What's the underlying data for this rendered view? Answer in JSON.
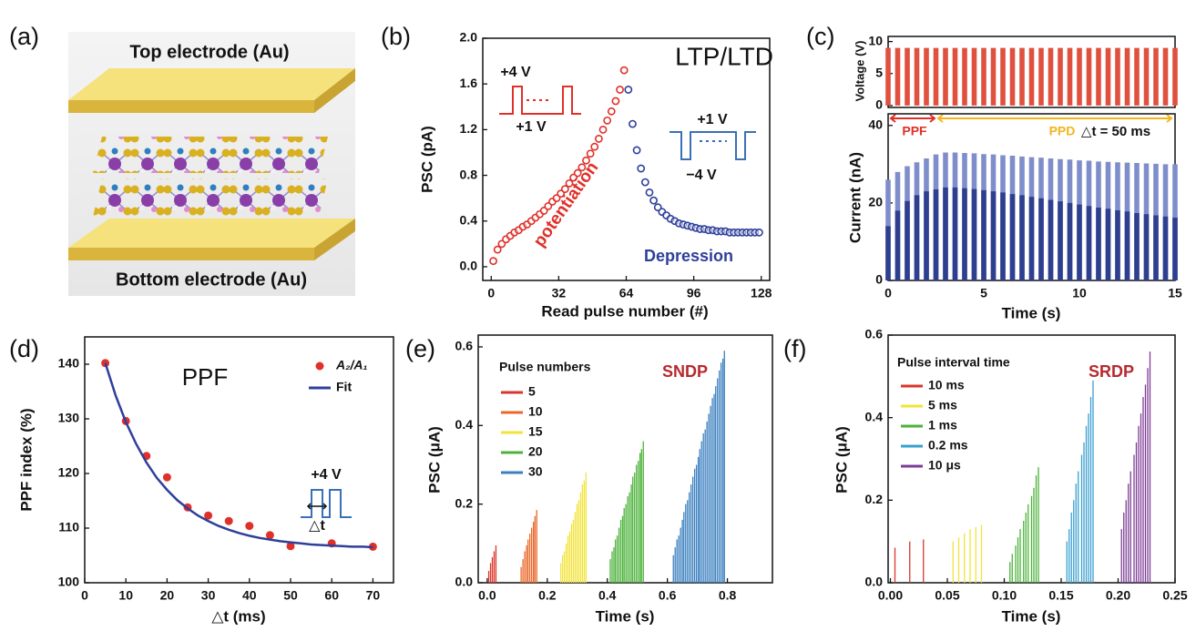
{
  "illustration": {
    "label": "(a)",
    "top_label": "Top electrode (Au)",
    "bottom_label": "Bottom electrode (Au)"
  },
  "chart_data": [
    {
      "type": "scatter",
      "label": "(b)",
      "x_label": "Read pulse number (#)",
      "y_label": "PSC (pA)",
      "xlim": [
        -4,
        132
      ],
      "xticks": [
        0,
        32,
        64,
        96,
        128
      ],
      "ylim": [
        -0.12,
        2.0
      ],
      "yticks": [
        {
          "value": 0,
          "label": "0.0"
        },
        0.4,
        0.8,
        1.2,
        1.6,
        {
          "value": 2,
          "label": "2.0"
        }
      ],
      "annotations": [
        "LTP/LTD",
        "+4 V",
        "+1 V",
        "+1 V",
        "−4 V"
      ],
      "series": [
        {
          "name": "potentiation",
          "color": "#e0302a",
          "x": [
            1,
            3,
            5,
            7,
            9,
            11,
            13,
            15,
            17,
            19,
            21,
            23,
            25,
            27,
            29,
            31,
            33,
            35,
            37,
            39,
            41,
            43,
            45,
            47,
            49,
            51,
            53,
            55,
            57,
            59,
            61,
            63
          ],
          "values": [
            0.05,
            0.15,
            0.2,
            0.24,
            0.27,
            0.3,
            0.32,
            0.35,
            0.37,
            0.4,
            0.43,
            0.46,
            0.49,
            0.53,
            0.57,
            0.6,
            0.64,
            0.68,
            0.73,
            0.78,
            0.82,
            0.87,
            0.93,
            0.99,
            1.05,
            1.12,
            1.2,
            1.28,
            1.36,
            1.45,
            1.55,
            1.72
          ]
        },
        {
          "name": "Depression",
          "color": "#2e3f9a",
          "x": [
            65,
            67,
            69,
            71,
            73,
            75,
            77,
            79,
            81,
            83,
            85,
            87,
            89,
            91,
            93,
            95,
            97,
            99,
            101,
            103,
            105,
            107,
            109,
            111,
            113,
            115,
            117,
            119,
            121,
            123,
            125,
            127
          ],
          "values": [
            1.55,
            1.25,
            1.02,
            0.86,
            0.74,
            0.65,
            0.58,
            0.52,
            0.48,
            0.45,
            0.42,
            0.4,
            0.38,
            0.37,
            0.36,
            0.35,
            0.34,
            0.33,
            0.33,
            0.32,
            0.32,
            0.31,
            0.31,
            0.31,
            0.3,
            0.3,
            0.3,
            0.3,
            0.3,
            0.3,
            0.3,
            0.3
          ]
        }
      ]
    },
    {
      "type": "spike",
      "label": "(c)",
      "y_label": "Voltage (V)",
      "xlim": [
        0,
        15
      ],
      "ylim": [
        -0.3,
        10.8
      ],
      "yticks": [
        0,
        5,
        10
      ],
      "series": [
        {
          "color": "#e0503e",
          "x": [
            0,
            0.5,
            1,
            1.5,
            2,
            2.5,
            3,
            3.5,
            4,
            4.5,
            5,
            5.5,
            6,
            6.5,
            7,
            7.5,
            8,
            8.5,
            9,
            9.5,
            10,
            10.5,
            11,
            11.5,
            12,
            12.5,
            13,
            13.5,
            14,
            14.5,
            15
          ],
          "values": [
            9,
            9,
            9,
            9,
            9,
            9,
            9,
            9,
            9,
            9,
            9,
            9,
            9,
            9,
            9,
            9,
            9,
            9,
            9,
            9,
            9,
            9,
            9,
            9,
            9,
            9,
            9,
            9,
            9,
            9,
            9
          ]
        }
      ]
    },
    {
      "type": "spike",
      "x_label": "Time (s)",
      "y_label": "Current (nA)",
      "xlim": [
        0,
        15
      ],
      "xticks": [
        0,
        5,
        10,
        15
      ],
      "ylim": [
        0,
        43
      ],
      "yticks": [
        0,
        20,
        40
      ],
      "annotations": [
        "PPF",
        "PPD",
        "△t = 50 ms"
      ],
      "series": [
        {
          "color": "#7f8ecb",
          "x": [
            0,
            0.5,
            1,
            1.5,
            2,
            2.5,
            3,
            3.5,
            4,
            4.5,
            5,
            5.5,
            6,
            6.5,
            7,
            7.5,
            8,
            8.5,
            9,
            9.5,
            10,
            10.5,
            11,
            11.5,
            12,
            12.5,
            13,
            13.5,
            14,
            14.5,
            15
          ],
          "values": [
            26,
            28,
            29.5,
            30.5,
            31.5,
            32.5,
            33,
            33,
            32.9,
            32.8,
            32.6,
            32.5,
            32.3,
            32.2,
            32,
            31.8,
            31.7,
            31.5,
            31.3,
            31.2,
            31,
            30.9,
            30.7,
            30.6,
            30.5,
            30.4,
            30.3,
            30.2,
            30.1,
            30,
            30
          ]
        },
        {
          "color": "#2e3f8f",
          "x": [
            0,
            0.5,
            1,
            1.5,
            2,
            2.5,
            3,
            3.5,
            4,
            4.5,
            5,
            5.5,
            6,
            6.5,
            7,
            7.5,
            8,
            8.5,
            9,
            9.5,
            10,
            10.5,
            11,
            11.5,
            12,
            12.5,
            13,
            13.5,
            14,
            14.5,
            15
          ],
          "values": [
            14,
            18,
            20.5,
            22,
            23,
            23.5,
            24,
            24,
            23.8,
            23.6,
            23.3,
            23,
            22.7,
            22.3,
            22,
            21.6,
            21.2,
            20.8,
            20.4,
            20,
            19.6,
            19.2,
            18.8,
            18.5,
            18.1,
            17.8,
            17.4,
            17.1,
            16.8,
            16.5,
            16.2
          ]
        }
      ]
    },
    {
      "type": "scatter",
      "label": "(d)",
      "x_label": "△t (ms)",
      "y_label": "PPF index (%)",
      "xlim": [
        0,
        75
      ],
      "xticks": [
        0,
        10,
        20,
        30,
        40,
        50,
        60,
        70
      ],
      "ylim": [
        100,
        145
      ],
      "yticks": [
        100,
        110,
        120,
        130,
        140
      ],
      "annotations": [
        "PPF",
        "+4 V",
        "△t"
      ],
      "series": [
        {
          "name": "A₂/A₁",
          "color": "#e0302a",
          "x": [
            5,
            10,
            15,
            20,
            25,
            30,
            35,
            40,
            45,
            50,
            60,
            70
          ],
          "values": [
            140.2,
            129.6,
            123.2,
            119.3,
            113.8,
            112.3,
            111.3,
            110.4,
            108.7,
            106.7,
            107.2,
            106.6
          ]
        },
        {
          "name": "Fit",
          "type": "line",
          "color": "#2e3f9a",
          "x": [
            5,
            7.5,
            10,
            12.5,
            15,
            17.5,
            20,
            22.5,
            25,
            27.5,
            30,
            32.5,
            35,
            37.5,
            40,
            42.5,
            45,
            47.5,
            50,
            52.5,
            55,
            57.5,
            60,
            62.5,
            65,
            67.5,
            70
          ],
          "values": [
            140.2,
            134.3,
            129.4,
            125.4,
            122.0,
            119.2,
            117.0,
            115.1,
            113.6,
            112.3,
            111.3,
            110.4,
            109.7,
            109.1,
            108.6,
            108.2,
            107.9,
            107.6,
            107.4,
            107.2,
            107.0,
            106.9,
            106.8,
            106.7,
            106.6,
            106.6,
            106.5
          ]
        }
      ]
    },
    {
      "type": "spike",
      "label": "(e)",
      "x_label": "Time (s)",
      "y_label": "PSC (μA)",
      "xlim": [
        -0.03,
        0.95
      ],
      "xticks": [
        {
          "value": 0,
          "label": "0.0"
        },
        0.2,
        0.4,
        0.6,
        0.8
      ],
      "ylim": [
        0,
        0.63
      ],
      "yticks": [
        {
          "value": 0,
          "label": "0.0"
        },
        0.2,
        0.4,
        0.6
      ],
      "annotations": [
        "SNDP"
      ],
      "legend_title": "Pulse numbers",
      "series": [
        {
          "name": "5",
          "color": "#d9362b",
          "x": [
            0.005,
            0.011,
            0.017,
            0.023,
            0.029
          ],
          "values": [
            0.03,
            0.05,
            0.065,
            0.08,
            0.095
          ]
        },
        {
          "name": "10",
          "color": "#e8682a",
          "x": [
            0.113,
            0.119,
            0.125,
            0.131,
            0.136,
            0.142,
            0.148,
            0.154,
            0.159,
            0.165
          ],
          "values": [
            0.04,
            0.06,
            0.08,
            0.095,
            0.11,
            0.125,
            0.14,
            0.155,
            0.17,
            0.185
          ]
        },
        {
          "name": "15",
          "color": "#f2e33a",
          "x": [
            0.245,
            0.251,
            0.257,
            0.263,
            0.269,
            0.275,
            0.281,
            0.287,
            0.293,
            0.299,
            0.305,
            0.311,
            0.317,
            0.323,
            0.329
          ],
          "values": [
            0.05,
            0.07,
            0.08,
            0.1,
            0.12,
            0.13,
            0.15,
            0.16,
            0.18,
            0.2,
            0.21,
            0.23,
            0.25,
            0.26,
            0.28
          ]
        },
        {
          "name": "20",
          "color": "#4cb23a",
          "x": [
            0.41,
            0.416,
            0.422,
            0.427,
            0.433,
            0.439,
            0.445,
            0.451,
            0.456,
            0.462,
            0.468,
            0.474,
            0.48,
            0.485,
            0.491,
            0.497,
            0.503,
            0.509,
            0.514,
            0.52
          ],
          "values": [
            0.06,
            0.08,
            0.09,
            0.11,
            0.12,
            0.14,
            0.16,
            0.17,
            0.19,
            0.2,
            0.22,
            0.23,
            0.25,
            0.27,
            0.28,
            0.3,
            0.31,
            0.33,
            0.34,
            0.36
          ]
        },
        {
          "name": "30",
          "color": "#3a7fbf",
          "x": [
            0.62,
            0.626,
            0.632,
            0.638,
            0.644,
            0.65,
            0.655,
            0.661,
            0.667,
            0.673,
            0.679,
            0.685,
            0.691,
            0.697,
            0.703,
            0.708,
            0.714,
            0.72,
            0.726,
            0.732,
            0.738,
            0.744,
            0.75,
            0.756,
            0.761,
            0.767,
            0.773,
            0.779,
            0.785,
            0.79
          ],
          "values": [
            0.07,
            0.09,
            0.11,
            0.12,
            0.14,
            0.16,
            0.18,
            0.2,
            0.21,
            0.23,
            0.25,
            0.27,
            0.29,
            0.3,
            0.32,
            0.34,
            0.36,
            0.38,
            0.39,
            0.41,
            0.43,
            0.45,
            0.47,
            0.48,
            0.5,
            0.52,
            0.54,
            0.56,
            0.57,
            0.59
          ]
        }
      ]
    },
    {
      "type": "spike",
      "label": "(f)",
      "x_label": "Time (s)",
      "y_label": "PSC (μA)",
      "xlim": [
        -0.002,
        0.25
      ],
      "xticks": [
        {
          "value": 0,
          "label": "0.00"
        },
        0.05,
        {
          "value": 0.1,
          "label": "0.10"
        },
        0.15,
        {
          "value": 0.2,
          "label": "0.20"
        },
        0.25
      ],
      "ylim": [
        0,
        0.6
      ],
      "yticks": [
        {
          "value": 0,
          "label": "0.0"
        },
        0.2,
        0.4,
        {
          "value": 0.6,
          "label": "0.6"
        }
      ],
      "annotations": [
        "SRDP"
      ],
      "legend_title": "Pulse interval time",
      "series": [
        {
          "name": "10 ms",
          "color": "#d9362b",
          "x": [
            0.004,
            0.017,
            0.029
          ],
          "values": [
            0.085,
            0.1,
            0.105
          ]
        },
        {
          "name": "5 ms",
          "color": "#f2e33a",
          "x": [
            0.055,
            0.06,
            0.065,
            0.07,
            0.075,
            0.08
          ],
          "values": [
            0.1,
            0.11,
            0.12,
            0.13,
            0.135,
            0.14
          ]
        },
        {
          "name": "1 ms",
          "color": "#4cb23a",
          "x": [
            0.105,
            0.107,
            0.11,
            0.112,
            0.114,
            0.117,
            0.119,
            0.121,
            0.124,
            0.126,
            0.128,
            0.13
          ],
          "values": [
            0.05,
            0.07,
            0.09,
            0.11,
            0.13,
            0.15,
            0.17,
            0.19,
            0.21,
            0.23,
            0.26,
            0.28
          ]
        },
        {
          "name": "0.2 ms",
          "color": "#3a9fcf",
          "x": [
            0.155,
            0.157,
            0.159,
            0.161,
            0.163,
            0.165,
            0.168,
            0.17,
            0.172,
            0.174,
            0.176,
            0.178
          ],
          "values": [
            0.1,
            0.13,
            0.17,
            0.2,
            0.24,
            0.27,
            0.31,
            0.34,
            0.38,
            0.41,
            0.45,
            0.49
          ]
        },
        {
          "name": "10 μs",
          "color": "#7e3c96",
          "x": [
            0.203,
            0.205,
            0.207,
            0.209,
            0.211,
            0.214,
            0.216,
            0.218,
            0.22,
            0.222,
            0.224,
            0.226,
            0.228
          ],
          "values": [
            0.13,
            0.17,
            0.2,
            0.24,
            0.27,
            0.31,
            0.34,
            0.38,
            0.41,
            0.45,
            0.48,
            0.52,
            0.56
          ]
        }
      ]
    }
  ]
}
